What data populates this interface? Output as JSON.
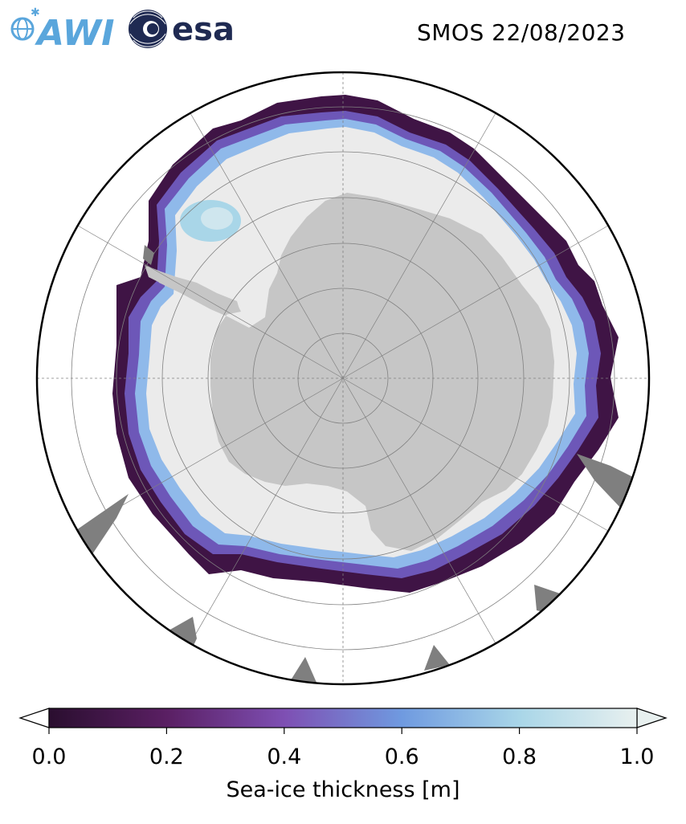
{
  "header": {
    "title": "SMOS 22/08/2023",
    "logo_awi_text": "AWI",
    "logo_esa_text": "esa"
  },
  "map": {
    "projection": "south-polar-stereographic",
    "colors": {
      "land": "#c6c6c6",
      "coast_rock": "#7f7f7f",
      "thick_ice": "#ebebeb",
      "gridlines": "#808080",
      "boundary": "#000000",
      "ocean": "#ffffff"
    }
  },
  "colorbar": {
    "label": "Sea-ice thickness [m]",
    "min": 0.0,
    "max": 1.0,
    "extend": "both",
    "ticks": [
      "0.0",
      "0.2",
      "0.4",
      "0.6",
      "0.8",
      "1.0"
    ],
    "colors": [
      "#2a0e2f",
      "#5a1f63",
      "#7e4fb3",
      "#6f9ae0",
      "#a9d6e8",
      "#e8f0ef"
    ]
  }
}
